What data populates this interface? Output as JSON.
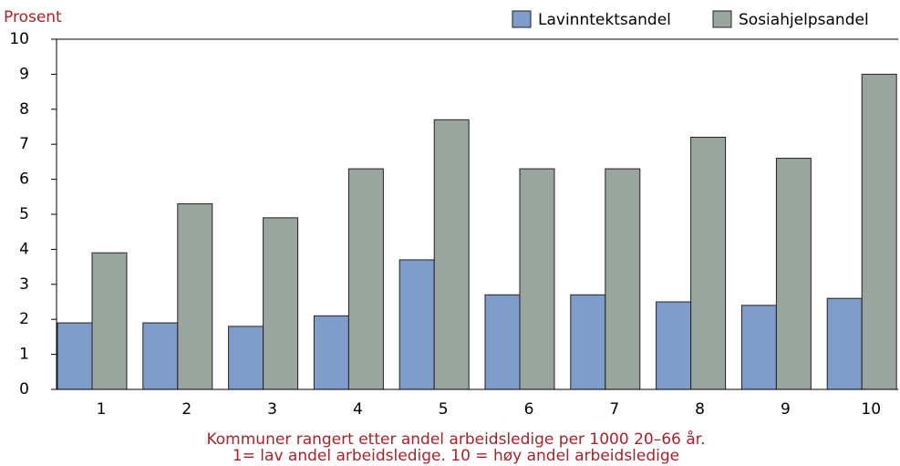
{
  "chart_data": {
    "type": "bar",
    "ylabel": "Prosent",
    "xlabel": [
      "Kommuner rangert etter andel arbeidsledige per 1000 20–66 år.",
      "1= lav andel arbeidsledige. 10 = høy andel arbeidsledige"
    ],
    "categories": [
      "1",
      "2",
      "3",
      "4",
      "5",
      "6",
      "7",
      "8",
      "9",
      "10"
    ],
    "series": [
      {
        "name": "Lavinntektsandel",
        "color": "#7f9ccb",
        "values": [
          1.9,
          1.9,
          1.8,
          2.1,
          3.7,
          2.7,
          2.7,
          2.5,
          2.4,
          2.6
        ]
      },
      {
        "name": "Sosiahjelpsandel",
        "color": "#9aa59f",
        "values": [
          3.9,
          5.3,
          4.9,
          6.3,
          7.7,
          6.3,
          6.3,
          7.2,
          6.6,
          9.0
        ]
      }
    ],
    "ylim": [
      0,
      10
    ],
    "yticks": [
      0,
      1,
      2,
      3,
      4,
      5,
      6,
      7,
      8,
      9,
      10
    ],
    "legend": "top-right"
  }
}
